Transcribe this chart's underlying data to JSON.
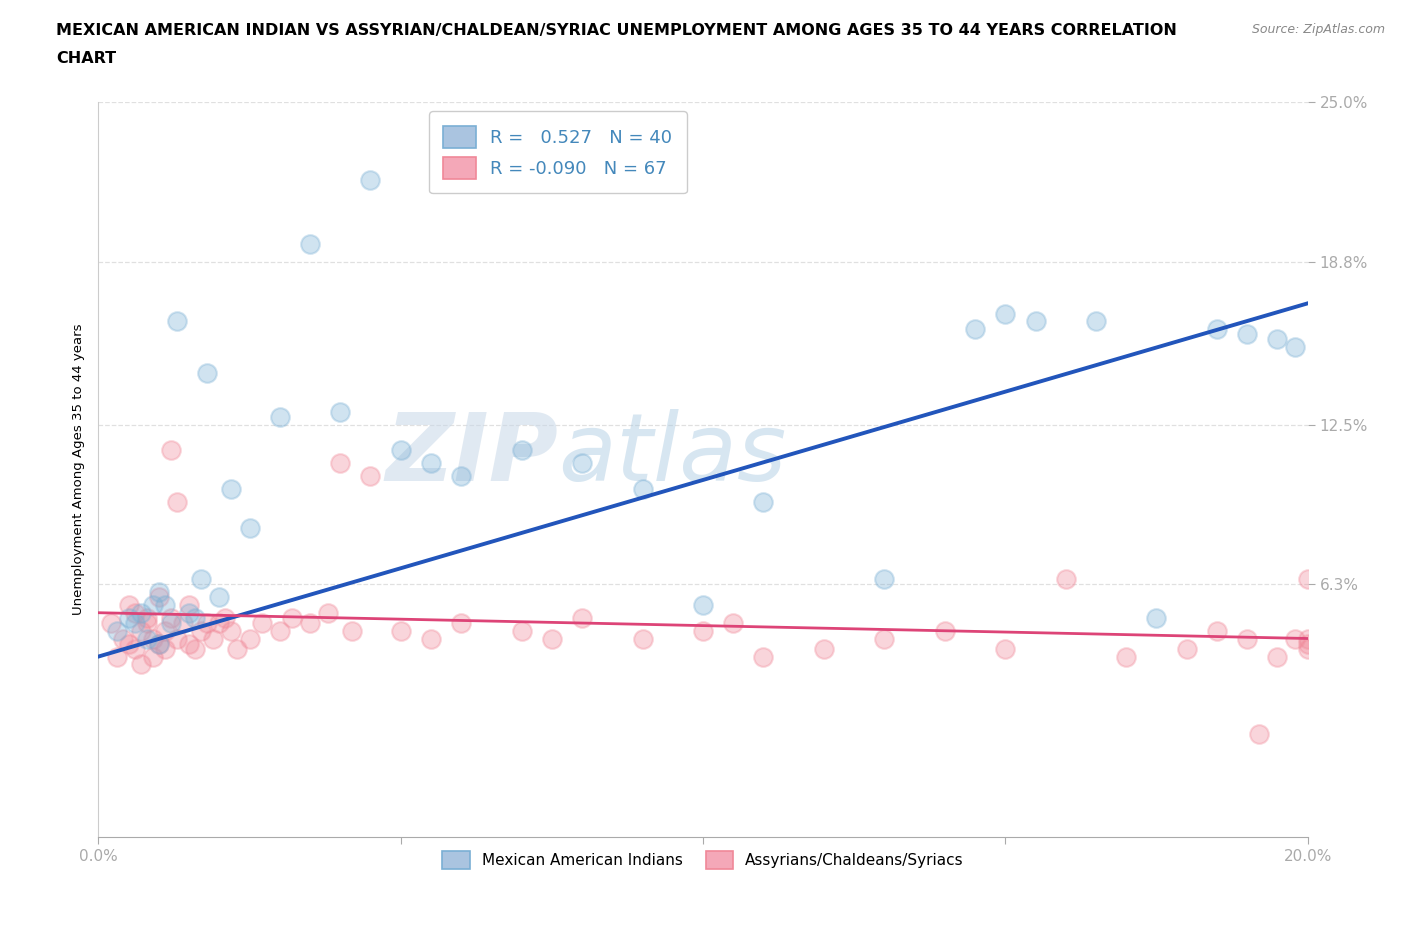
{
  "title_line1": "MEXICAN AMERICAN INDIAN VS ASSYRIAN/CHALDEAN/SYRIAC UNEMPLOYMENT AMONG AGES 35 TO 44 YEARS CORRELATION",
  "title_line2": "CHART",
  "source": "Source: ZipAtlas.com",
  "xlabel_ticks": [
    "0.0%",
    "20.0%"
  ],
  "xlabel_vals": [
    0.0,
    20.0
  ],
  "ylabel_ticks": [
    "6.3%",
    "12.5%",
    "18.8%",
    "25.0%"
  ],
  "ylabel_vals": [
    6.3,
    12.5,
    18.8,
    25.0
  ],
  "xmin": 0.0,
  "xmax": 20.0,
  "ymin": -3.5,
  "ymax": 25.0,
  "legend1_color": "#aac4e0",
  "legend2_color": "#f4a8b8",
  "series1_color": "#7aafd4",
  "series2_color": "#f08898",
  "line1_color": "#2255bb",
  "line2_color": "#dd4477",
  "series1_name": "Mexican American Indians",
  "series2_name": "Assyrians/Chaldeans/Syriacs",
  "watermark_zip": "ZIP",
  "watermark_atlas": "atlas",
  "grid_color": "#dddddd",
  "bg_color": "#ffffff",
  "title_fontsize": 11.5,
  "axis_label_fontsize": 9.5,
  "tick_fontsize": 11,
  "legend_fontsize": 13,
  "blue_x": [
    0.3,
    0.5,
    0.6,
    0.7,
    0.8,
    0.9,
    1.0,
    1.0,
    1.1,
    1.2,
    1.3,
    1.5,
    1.6,
    1.7,
    1.8,
    2.0,
    2.2,
    2.5,
    3.0,
    3.5,
    4.0,
    4.5,
    5.0,
    5.5,
    6.0,
    7.0,
    8.0,
    9.0,
    10.0,
    11.0,
    13.0,
    14.5,
    15.0,
    15.5,
    16.5,
    17.5,
    18.5,
    19.0,
    19.5,
    19.8
  ],
  "blue_y": [
    4.5,
    5.0,
    4.8,
    5.2,
    4.2,
    5.5,
    4.0,
    6.0,
    5.5,
    4.8,
    16.5,
    5.2,
    5.0,
    6.5,
    14.5,
    5.8,
    10.0,
    8.5,
    12.8,
    19.5,
    13.0,
    22.0,
    11.5,
    11.0,
    10.5,
    11.5,
    11.0,
    10.0,
    5.5,
    9.5,
    6.5,
    16.2,
    16.8,
    16.5,
    16.5,
    5.0,
    16.2,
    16.0,
    15.8,
    15.5
  ],
  "pink_x": [
    0.2,
    0.3,
    0.4,
    0.5,
    0.5,
    0.6,
    0.6,
    0.7,
    0.7,
    0.8,
    0.8,
    0.9,
    0.9,
    1.0,
    1.0,
    1.1,
    1.1,
    1.2,
    1.2,
    1.3,
    1.3,
    1.4,
    1.5,
    1.5,
    1.6,
    1.7,
    1.8,
    1.9,
    2.0,
    2.1,
    2.2,
    2.3,
    2.5,
    2.7,
    3.0,
    3.2,
    3.5,
    3.8,
    4.0,
    4.2,
    4.5,
    5.0,
    5.5,
    6.0,
    7.0,
    7.5,
    8.0,
    9.0,
    10.0,
    10.5,
    11.0,
    12.0,
    13.0,
    14.0,
    15.0,
    16.0,
    17.0,
    18.0,
    18.5,
    19.0,
    19.2,
    19.5,
    19.8,
    20.0,
    20.0,
    20.0,
    20.0
  ],
  "pink_y": [
    4.8,
    3.5,
    4.2,
    5.5,
    4.0,
    3.8,
    5.2,
    4.5,
    3.2,
    4.8,
    5.0,
    4.2,
    3.5,
    5.8,
    4.0,
    4.5,
    3.8,
    11.5,
    5.0,
    9.5,
    4.2,
    4.8,
    5.5,
    4.0,
    3.8,
    4.5,
    4.8,
    4.2,
    4.8,
    5.0,
    4.5,
    3.8,
    4.2,
    4.8,
    4.5,
    5.0,
    4.8,
    5.2,
    11.0,
    4.5,
    10.5,
    4.5,
    4.2,
    4.8,
    4.5,
    4.2,
    5.0,
    4.2,
    4.5,
    4.8,
    3.5,
    3.8,
    4.2,
    4.5,
    3.8,
    6.5,
    3.5,
    3.8,
    4.5,
    4.2,
    0.5,
    3.5,
    4.2,
    6.5,
    4.2,
    4.0,
    3.8
  ]
}
